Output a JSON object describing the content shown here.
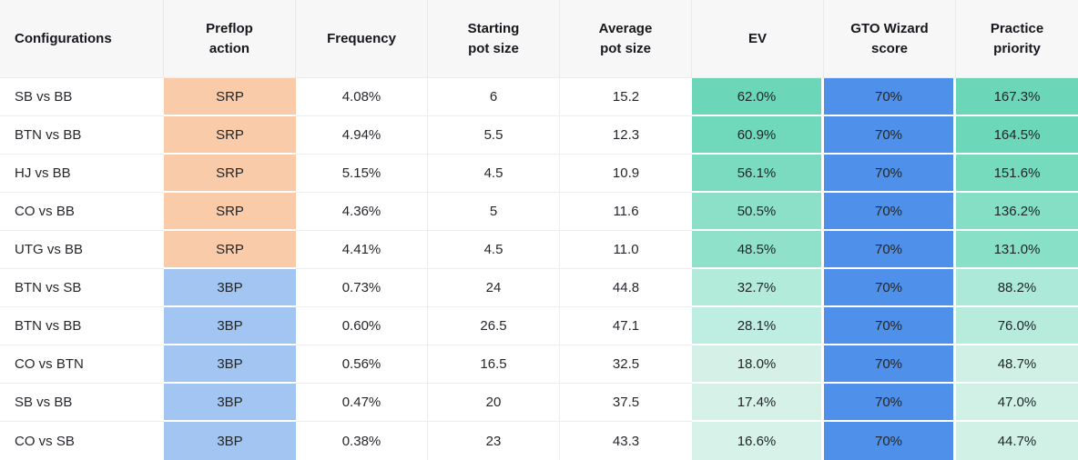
{
  "palette": {
    "header_bg": "#F7F7F8",
    "header_text": "#17171D",
    "body_text": "#26262C",
    "row_border": "#EDEDF0",
    "header_border": "#E9E9EC",
    "srp_cell": "#F9CBA9",
    "threebet_cell": "#A2C5F1",
    "gto_score_blue": "#4E90EA",
    "green_scale_high": "#6BD7B8",
    "green_scale_low": "#D7F2E9"
  },
  "table": {
    "columns": [
      {
        "key": "config",
        "label": "Configurations",
        "lines": "Configurations"
      },
      {
        "key": "preflop",
        "label": "Preflop action",
        "lines": "Preflop\naction"
      },
      {
        "key": "frequency",
        "label": "Frequency",
        "lines": "Frequency"
      },
      {
        "key": "starting_pot",
        "label": "Starting pot size",
        "lines": "Starting\npot size"
      },
      {
        "key": "average_pot",
        "label": "Average pot size",
        "lines": "Average\npot size"
      },
      {
        "key": "ev",
        "label": "EV",
        "lines": "EV"
      },
      {
        "key": "gto",
        "label": "GTO Wizard score",
        "lines": "GTO Wizard\nscore"
      },
      {
        "key": "priority",
        "label": "Practice priority",
        "lines": "Practice\npriority"
      }
    ],
    "rows": [
      {
        "config": "SB vs BB",
        "preflop": "SRP",
        "preflop_color": "#F9CBA9",
        "frequency": "4.08%",
        "starting_pot": "6",
        "average_pot": "15.2",
        "ev": "62.0%",
        "ev_color": "#6BD7B8",
        "gto": "70%",
        "gto_color": "#4E90EA",
        "priority": "167.3%",
        "priority_color": "#6BD7B8"
      },
      {
        "config": "BTN vs BB",
        "preflop": "SRP",
        "preflop_color": "#F9CBA9",
        "frequency": "4.94%",
        "starting_pot": "5.5",
        "average_pot": "12.3",
        "ev": "60.9%",
        "ev_color": "#70D9BB",
        "gto": "70%",
        "gto_color": "#4E90EA",
        "priority": "164.5%",
        "priority_color": "#6DD8B9"
      },
      {
        "config": "HJ vs BB",
        "preflop": "SRP",
        "preflop_color": "#F9CBA9",
        "frequency": "5.15%",
        "starting_pot": "4.5",
        "average_pot": "10.9",
        "ev": "56.1%",
        "ev_color": "#7BDBC0",
        "gto": "70%",
        "gto_color": "#4E90EA",
        "priority": "151.6%",
        "priority_color": "#76DABD"
      },
      {
        "config": "CO vs BB",
        "preflop": "SRP",
        "preflop_color": "#F9CBA9",
        "frequency": "4.36%",
        "starting_pot": "5",
        "average_pot": "11.6",
        "ev": "50.5%",
        "ev_color": "#8CE0C8",
        "gto": "70%",
        "gto_color": "#4E90EA",
        "priority": "136.2%",
        "priority_color": "#84DFC4"
      },
      {
        "config": "UTG vs BB",
        "preflop": "SRP",
        "preflop_color": "#F9CBA9",
        "frequency": "4.41%",
        "starting_pot": "4.5",
        "average_pot": "11.0",
        "ev": "48.5%",
        "ev_color": "#90E1CA",
        "gto": "70%",
        "gto_color": "#4E90EA",
        "priority": "131.0%",
        "priority_color": "#88E0C6"
      },
      {
        "config": "BTN vs SB",
        "preflop": "3BP",
        "preflop_color": "#A2C5F1",
        "frequency": "0.73%",
        "starting_pot": "24",
        "average_pot": "44.8",
        "ev": "32.7%",
        "ev_color": "#B3EBDB",
        "gto": "70%",
        "gto_color": "#4E90EA",
        "priority": "88.2%",
        "priority_color": "#ACE9D8"
      },
      {
        "config": "BTN vs BB",
        "preflop": "3BP",
        "preflop_color": "#A2C5F1",
        "frequency": "0.60%",
        "starting_pot": "26.5",
        "average_pot": "47.1",
        "ev": "28.1%",
        "ev_color": "#BEEDE1",
        "gto": "70%",
        "gto_color": "#4E90EA",
        "priority": "76.0%",
        "priority_color": "#B7ECDD"
      },
      {
        "config": "CO vs BTN",
        "preflop": "3BP",
        "preflop_color": "#A2C5F1",
        "frequency": "0.56%",
        "starting_pot": "16.5",
        "average_pot": "32.5",
        "ev": "18.0%",
        "ev_color": "#D5F1E7",
        "gto": "70%",
        "gto_color": "#4E90EA",
        "priority": "48.7%",
        "priority_color": "#D0F0E5"
      },
      {
        "config": "SB vs BB",
        "preflop": "3BP",
        "preflop_color": "#A2C5F1",
        "frequency": "0.47%",
        "starting_pot": "20",
        "average_pot": "37.5",
        "ev": "17.4%",
        "ev_color": "#D6F1E8",
        "gto": "70%",
        "gto_color": "#4E90EA",
        "priority": "47.0%",
        "priority_color": "#D1F0E6"
      },
      {
        "config": "CO vs SB",
        "preflop": "3BP",
        "preflop_color": "#A2C5F1",
        "frequency": "0.38%",
        "starting_pot": "23",
        "average_pot": "43.3",
        "ev": "16.6%",
        "ev_color": "#D7F2E9",
        "gto": "70%",
        "gto_color": "#4E90EA",
        "priority": "44.7%",
        "priority_color": "#D2F1E6"
      }
    ]
  }
}
